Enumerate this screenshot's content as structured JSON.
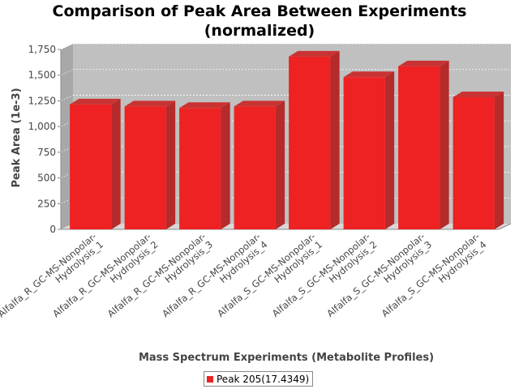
{
  "chart_data": {
    "type": "bar",
    "title_line1": "Comparison of Peak Area Between Experiments",
    "title_line2": "(normalized)",
    "xlabel": "Mass Spectrum Experiments (Metabolite Profiles)",
    "ylabel": "Peak Area (1e-3)",
    "ylim": [
      0,
      1750
    ],
    "yticks": [
      0,
      250,
      500,
      750,
      1000,
      1250,
      1500,
      1750
    ],
    "ytick_labels": [
      "0",
      "250",
      "500",
      "750",
      "1,000",
      "1,250",
      "1,500",
      "1,750"
    ],
    "grid": true,
    "legend_position": "bottom",
    "categories": [
      [
        "Alfalfa_R_GC-MS-Nonpolar-",
        "Hydrolysis_1"
      ],
      [
        "Alfalfa_R_GC-MS-Nonpolar-",
        "Hydrolysis_2"
      ],
      [
        "Alfalfa_R_GC-MS-Nonpolar-",
        "Hydrolysis_3"
      ],
      [
        "Alfalfa_R_GC-MS-Nonpolar-",
        "Hydrolysis_4"
      ],
      [
        "Alfalfa_S_GC-MS-Nonpolar-",
        "Hydrolysis_1"
      ],
      [
        "Alfalfa_S_GC-MS-Nonpolar-",
        "Hydrolysis_2"
      ],
      [
        "Alfalfa_S_GC-MS-Nonpolar-",
        "Hydrolysis_3"
      ],
      [
        "Alfalfa_S_GC-MS-Nonpolar-",
        "Hydrolysis_4"
      ]
    ],
    "series": [
      {
        "name": "Peak 205(17.4349)",
        "color": "#ee2222",
        "values": [
          1215,
          1195,
          1180,
          1195,
          1680,
          1480,
          1585,
          1285
        ]
      }
    ]
  }
}
